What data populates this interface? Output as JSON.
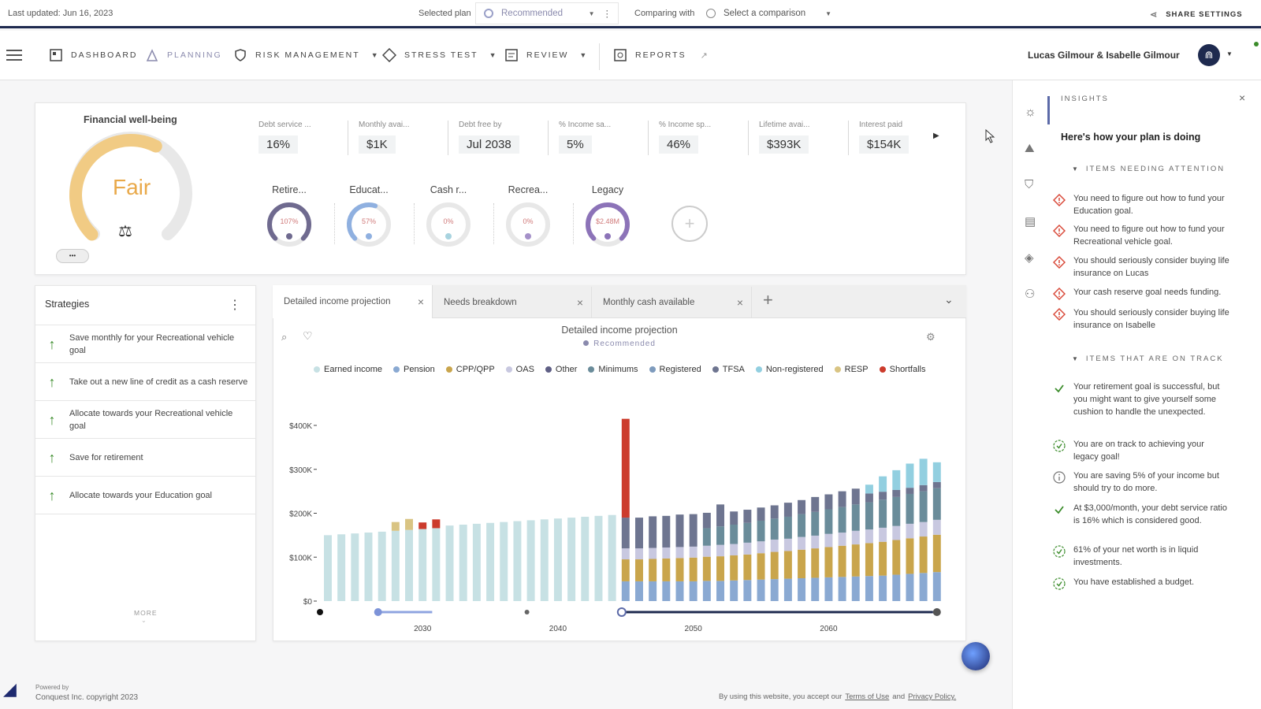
{
  "topbar": {
    "last_updated": "Last updated: Jun 16, 2023",
    "selected_plan_label": "Selected plan",
    "selected_plan_value": "Recommended",
    "comparing_label": "Comparing with",
    "comparing_value": "Select a comparison",
    "share": "SHARE SETTINGS"
  },
  "nav": {
    "items": [
      "DASHBOARD",
      "PLANNING",
      "RISK MANAGEMENT",
      "STRESS TEST",
      "REVIEW",
      "REPORTS"
    ],
    "user": "Lucas Gilmour & Isabelle Gilmour"
  },
  "wellbeing": {
    "title": "Financial well-being",
    "status": "Fair",
    "more": "•••",
    "level": 0.6
  },
  "metrics": [
    {
      "label": "Debt service ...",
      "value": "16%"
    },
    {
      "label": "Monthly avai...",
      "value": "$1K"
    },
    {
      "label": "Debt free by",
      "value": "Jul 2038"
    },
    {
      "label": "% Income sa...",
      "value": "5%"
    },
    {
      "label": "% Income sp...",
      "value": "46%"
    },
    {
      "label": "Lifetime avai...",
      "value": "$393K"
    },
    {
      "label": "Interest paid",
      "value": "$154K"
    }
  ],
  "goals": [
    {
      "label": "Retire...",
      "value": "107%",
      "color": "#6f6a8f",
      "progress": 1.0
    },
    {
      "label": "Educat...",
      "value": "57%",
      "color": "#8fb0e0",
      "progress": 0.57
    },
    {
      "label": "Cash r...",
      "value": "0%",
      "color": "#a8d3df",
      "progress": 0
    },
    {
      "label": "Recrea...",
      "value": "0%",
      "color": "#a591c9",
      "progress": 0
    },
    {
      "label": "Legacy",
      "value": "$2.48M",
      "color": "#8c73b8",
      "progress": 1.0
    }
  ],
  "strategies": {
    "title": "Strategies",
    "items": [
      "Save monthly for your Recreational vehicle goal",
      "Take out a new line of credit as a cash reserve",
      "Allocate towards your Recreational vehicle goal",
      "Save for retirement",
      "Allocate towards your Education goal"
    ],
    "more": "MORE"
  },
  "tabs": [
    "Detailed income projection",
    "Needs breakdown",
    "Monthly cash available"
  ],
  "chart": {
    "title": "Detailed income projection",
    "subtitle": "Recommended"
  },
  "colors": {
    "earned": "#c7e1e4",
    "pension": "#8aa9d2",
    "cpp": "#c9a54c",
    "oas": "#c8c8e0",
    "other": "#5f5f85",
    "minimums": "#6a8c9a",
    "registered": "#7e9bbd",
    "tfsa": "#6e7590",
    "nonreg": "#92cfe0",
    "resp": "#d9c483",
    "shortfall": "#cc3b2c"
  },
  "chart_data": {
    "type": "bar",
    "stacked": true,
    "legend": [
      "Earned income",
      "Pension",
      "CPP/QPP",
      "OAS",
      "Other",
      "Minimums",
      "Registered",
      "TFSA",
      "Non-registered",
      "RESP",
      "Shortfalls"
    ],
    "y_ticks": [
      "$0",
      "$100K",
      "$200K",
      "$300K",
      "$400K"
    ],
    "ylim": [
      0,
      400000
    ],
    "x_ticks": [
      "2030",
      "2040",
      "2050",
      "2060"
    ],
    "series": [
      {
        "name": "Earned income",
        "values": [
          150,
          152,
          154,
          156,
          158,
          160,
          162,
          164,
          166,
          172,
          174,
          176,
          178,
          180,
          182,
          184,
          186,
          188,
          190,
          192,
          194,
          196,
          0,
          0,
          0,
          0,
          0,
          0,
          0,
          0,
          0,
          0,
          0,
          0,
          0,
          0,
          0,
          0,
          0,
          0,
          0,
          0,
          0,
          0,
          0,
          0
        ]
      },
      {
        "name": "RESP",
        "values": [
          0,
          0,
          0,
          0,
          0,
          20,
          25,
          0,
          0,
          0,
          0,
          0,
          0,
          0,
          0,
          0,
          0,
          0,
          0,
          0,
          0,
          0,
          0,
          0,
          0,
          0,
          0,
          0,
          0,
          0,
          0,
          0,
          0,
          0,
          0,
          0,
          0,
          0,
          0,
          0,
          0,
          0,
          0,
          0,
          0,
          0
        ]
      },
      {
        "name": "Shortfalls",
        "values": [
          0,
          0,
          0,
          0,
          0,
          0,
          0,
          15,
          20,
          0,
          0,
          0,
          0,
          0,
          0,
          0,
          0,
          0,
          0,
          0,
          0,
          0,
          225,
          0,
          0,
          0,
          0,
          0,
          0,
          0,
          0,
          0,
          0,
          0,
          0,
          0,
          0,
          0,
          0,
          0,
          0,
          0,
          0,
          0,
          0,
          0
        ]
      },
      {
        "name": "Pension",
        "values": [
          0,
          0,
          0,
          0,
          0,
          0,
          0,
          0,
          0,
          0,
          0,
          0,
          0,
          0,
          0,
          0,
          0,
          0,
          0,
          0,
          0,
          0,
          45,
          45,
          45,
          45,
          45,
          45,
          46,
          46,
          47,
          48,
          49,
          50,
          51,
          52,
          53,
          54,
          55,
          56,
          57,
          58,
          60,
          62,
          64,
          66
        ]
      },
      {
        "name": "CPP/QPP",
        "values": [
          0,
          0,
          0,
          0,
          0,
          0,
          0,
          0,
          0,
          0,
          0,
          0,
          0,
          0,
          0,
          0,
          0,
          0,
          0,
          0,
          0,
          0,
          50,
          50,
          51,
          52,
          53,
          54,
          55,
          56,
          57,
          58,
          60,
          62,
          63,
          65,
          67,
          69,
          71,
          73,
          75,
          77,
          79,
          81,
          83,
          85
        ]
      },
      {
        "name": "OAS",
        "values": [
          0,
          0,
          0,
          0,
          0,
          0,
          0,
          0,
          0,
          0,
          0,
          0,
          0,
          0,
          0,
          0,
          0,
          0,
          0,
          0,
          0,
          0,
          25,
          25,
          25,
          25,
          25,
          25,
          25,
          26,
          26,
          27,
          27,
          28,
          28,
          29,
          29,
          30,
          30,
          31,
          31,
          32,
          32,
          33,
          33,
          34
        ]
      },
      {
        "name": "Minimums",
        "values": [
          0,
          0,
          0,
          0,
          0,
          0,
          0,
          0,
          0,
          0,
          0,
          0,
          0,
          0,
          0,
          0,
          0,
          0,
          0,
          0,
          0,
          0,
          0,
          0,
          0,
          0,
          0,
          0,
          40,
          42,
          44,
          45,
          47,
          48,
          50,
          52,
          54,
          56,
          58,
          60,
          62,
          64,
          66,
          68,
          70,
          72
        ]
      },
      {
        "name": "Other",
        "values": [
          0,
          0,
          0,
          0,
          0,
          0,
          0,
          0,
          0,
          0,
          0,
          0,
          0,
          0,
          0,
          0,
          0,
          0,
          0,
          0,
          0,
          0,
          70,
          70,
          72,
          72,
          74,
          74,
          35,
          50,
          30,
          30,
          30,
          30,
          32,
          32,
          34,
          34,
          36,
          36,
          20,
          18,
          16,
          14,
          14,
          14
        ]
      },
      {
        "name": "Non-registered",
        "values": [
          0,
          0,
          0,
          0,
          0,
          0,
          0,
          0,
          0,
          0,
          0,
          0,
          0,
          0,
          0,
          0,
          0,
          0,
          0,
          0,
          0,
          0,
          0,
          0,
          0,
          0,
          0,
          0,
          0,
          0,
          0,
          0,
          0,
          0,
          0,
          0,
          0,
          0,
          0,
          0,
          20,
          35,
          45,
          55,
          60,
          45
        ]
      }
    ]
  },
  "insights": {
    "title": "INSIGHTS",
    "heading": "Here's how your plan is doing",
    "attention_label": "ITEMS NEEDING ATTENTION",
    "attention": [
      "You need to figure out how to fund your Education goal.",
      "You need to figure out how to fund your Recreational vehicle goal.",
      "You should seriously consider buying life insurance on Lucas",
      "Your cash reserve goal needs funding.",
      "You should seriously consider buying life insurance on Isabelle"
    ],
    "ontrack_label": "ITEMS THAT ARE ON TRACK",
    "ontrack": [
      "Your retirement goal is successful, but you might want to give yourself some cushion to handle the unexpected.",
      "You are on track to achieving your legacy goal!",
      "You are saving 5% of your income but should try to do more.",
      "At $3,000/month, your debt service ratio is 16% which is considered good.",
      "61% of your net worth is in liquid investments.",
      "You have established a budget."
    ]
  },
  "footer": {
    "powered": "Powered by",
    "company": "Conquest Inc. copyright 2023",
    "terms_prefix": "By using this website, you accept our",
    "terms": "Terms of Use",
    "and": "and",
    "privacy": "Privacy Policy."
  }
}
